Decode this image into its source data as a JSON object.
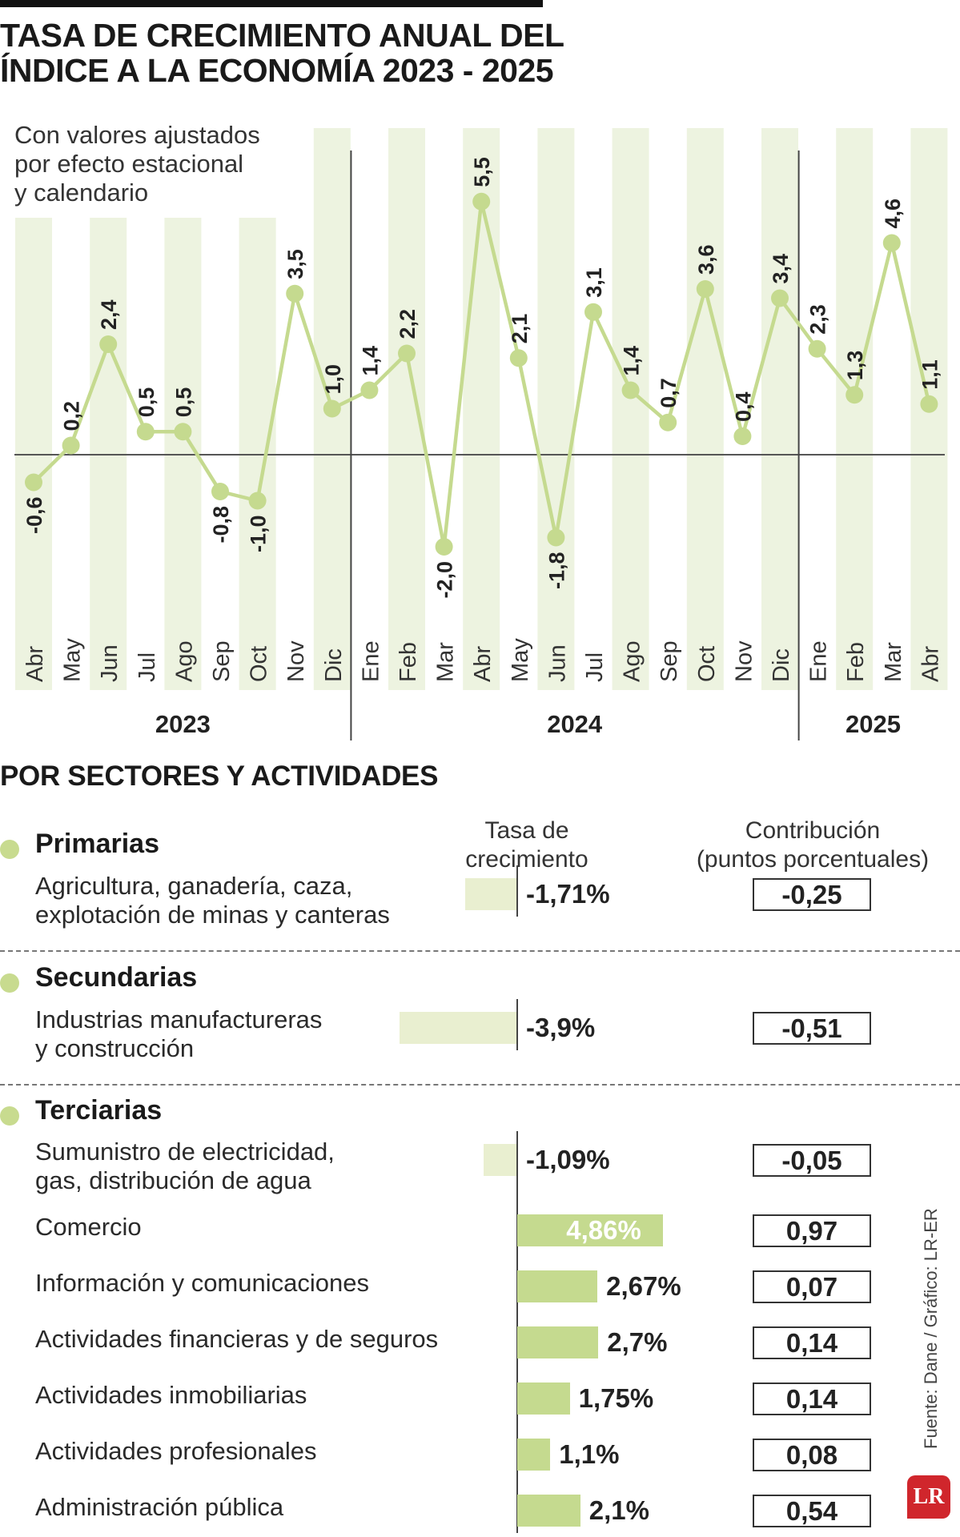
{
  "title_line1": "TASA DE CRECIMIENTO ANUAL DEL",
  "title_line2": "ÍNDICE A LA ECONOMÍA 2023 - 2025",
  "chart_data": {
    "type": "line",
    "subtitle": [
      "Con valores ajustados",
      "por efecto estacional",
      "y calendario"
    ],
    "x": [
      "Abr",
      "May",
      "Jun",
      "Jul",
      "Ago",
      "Sep",
      "Oct",
      "Nov",
      "Dic",
      "Ene",
      "Feb",
      "Mar",
      "Abr",
      "May",
      "Jun",
      "Jul",
      "Ago",
      "Sep",
      "Oct",
      "Nov",
      "Dic",
      "Ene",
      "Feb",
      "Mar",
      "Abr"
    ],
    "values": [
      -0.6,
      0.2,
      2.4,
      0.5,
      0.5,
      -0.8,
      -1.0,
      3.5,
      1.0,
      1.4,
      2.2,
      -2.0,
      5.5,
      2.1,
      -1.8,
      3.1,
      1.4,
      0.7,
      3.6,
      0.4,
      3.4,
      2.3,
      1.3,
      4.6,
      1.1
    ],
    "value_labels": [
      "-0,6",
      "0,2",
      "2,4",
      "0,5",
      "0,5",
      "-0,8",
      "-1,0",
      "3,5",
      "1,0",
      "1,4",
      "2,2",
      "-2,0",
      "5,5",
      "2,1",
      "-1,8",
      "3,1",
      "1,4",
      "0,7",
      "3,6",
      "0,4",
      "3,4",
      "2,3",
      "1,3",
      "4,6",
      "1,1"
    ],
    "years": [
      {
        "label": "2023",
        "start": 0,
        "end": 8
      },
      {
        "label": "2024",
        "start": 9,
        "end": 20
      },
      {
        "label": "2025",
        "start": 21,
        "end": 24
      }
    ],
    "ylim": [
      -2.5,
      6.5
    ],
    "line_color": "#c5da8f",
    "band_color": "#edf3e0"
  },
  "sectors": {
    "title": "POR SECTORES Y ACTIVIDADES",
    "col_rate": [
      "Tasa de",
      "crecimiento"
    ],
    "col_contrib": [
      "Contribución",
      "(puntos porcentuales)"
    ],
    "groups": [
      {
        "name": "Primarias",
        "rows": [
          {
            "label": [
              "Agricultura, ganadería, caza,",
              "explotación de minas y canteras"
            ],
            "rate": -1.71,
            "rate_label": "-1,71%",
            "contrib": "-0,25"
          }
        ]
      },
      {
        "name": "Secundarias",
        "rows": [
          {
            "label": [
              "Industrias manufactureras",
              "y construcción"
            ],
            "rate": -3.9,
            "rate_label": "-3,9%",
            "contrib": "-0,51"
          }
        ]
      },
      {
        "name": "Terciarias",
        "rows": [
          {
            "label": [
              "Sumunistro de electricidad,",
              "gas, distribución de agua"
            ],
            "rate": -1.09,
            "rate_label": "-1,09%",
            "contrib": "-0,05"
          },
          {
            "label": [
              "Comercio"
            ],
            "rate": 4.86,
            "rate_label": "4,86%",
            "contrib": "0,97"
          },
          {
            "label": [
              "Información y comunicaciones"
            ],
            "rate": 2.67,
            "rate_label": "2,67%",
            "contrib": "0,07"
          },
          {
            "label": [
              "Actividades financieras y de seguros"
            ],
            "rate": 2.7,
            "rate_label": "2,7%",
            "contrib": "0,14"
          },
          {
            "label": [
              "Actividades inmobiliarias"
            ],
            "rate": 1.75,
            "rate_label": "1,75%",
            "contrib": "0,14"
          },
          {
            "label": [
              "Actividades profesionales"
            ],
            "rate": 1.1,
            "rate_label": "1,1%",
            "contrib": "0,08"
          },
          {
            "label": [
              "Administración pública"
            ],
            "rate": 2.1,
            "rate_label": "2,1%",
            "contrib": "0,54"
          }
        ]
      }
    ]
  },
  "source": "Fuente: Dane / Gráfico: LR-ER",
  "logo": "LR"
}
